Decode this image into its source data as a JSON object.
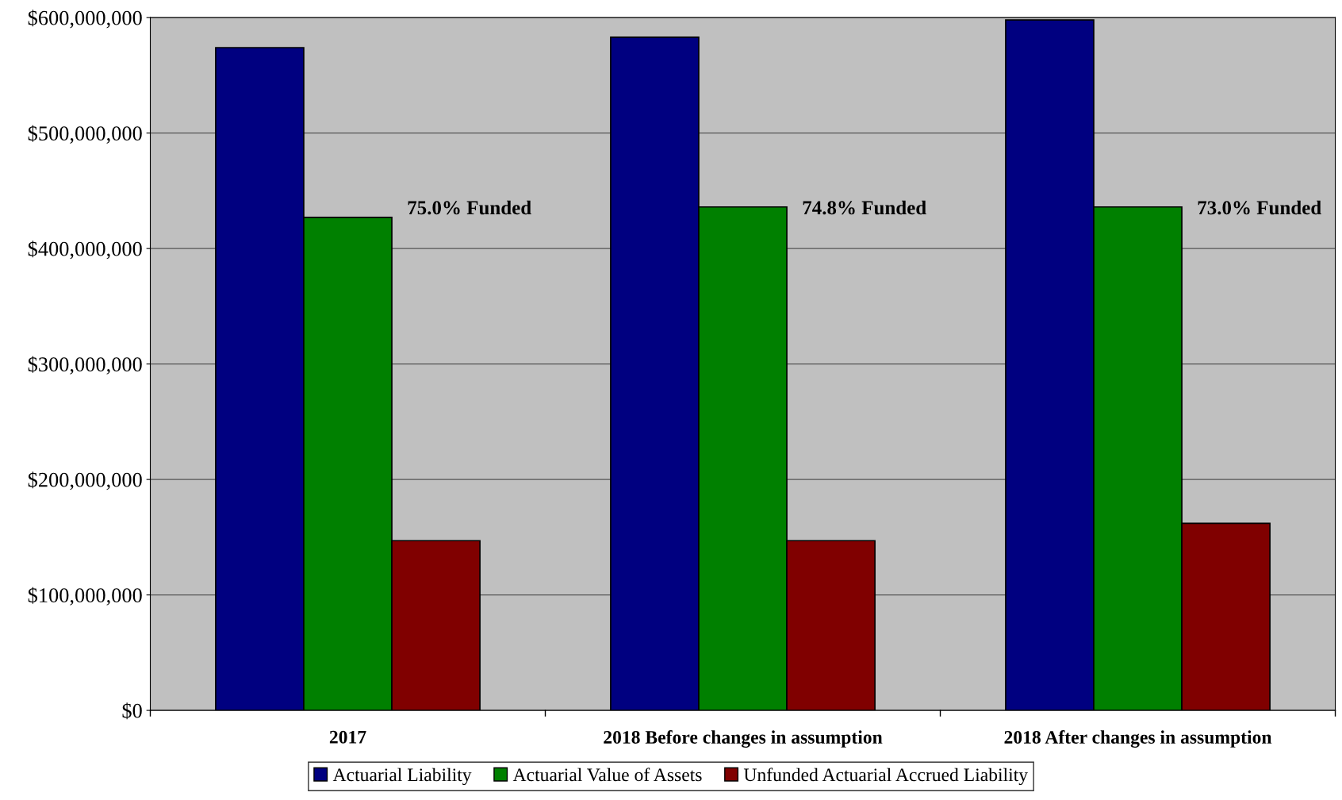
{
  "chart_data": {
    "type": "bar",
    "categories": [
      "2017",
      "2018 Before changes in assumption",
      "2018 After changes in assumption"
    ],
    "series": [
      {
        "name": "Actuarial Liability",
        "color": "#000080",
        "values": [
          574000000,
          583000000,
          598000000
        ]
      },
      {
        "name": "Actuarial Value of Assets",
        "color": "#008000",
        "values": [
          427000000,
          436000000,
          436000000
        ]
      },
      {
        "name": "Unfunded Actuarial Accrued Liability",
        "color": "#800000",
        "values": [
          147000000,
          147000000,
          162000000
        ]
      }
    ],
    "ylim": [
      0,
      600000000
    ],
    "yticks": [
      {
        "value": 0,
        "label": "$0"
      },
      {
        "value": 100000000,
        "label": "$100,000,000"
      },
      {
        "value": 200000000,
        "label": "$200,000,000"
      },
      {
        "value": 300000000,
        "label": "$300,000,000"
      },
      {
        "value": 400000000,
        "label": "$400,000,000"
      },
      {
        "value": 500000000,
        "label": "$500,000,000"
      },
      {
        "value": 600000000,
        "label": "$600,000,000"
      }
    ],
    "annotations": [
      "75.0% Funded",
      "74.8% Funded",
      "73.0% Funded"
    ],
    "grid": "y",
    "legend": "bottom"
  }
}
